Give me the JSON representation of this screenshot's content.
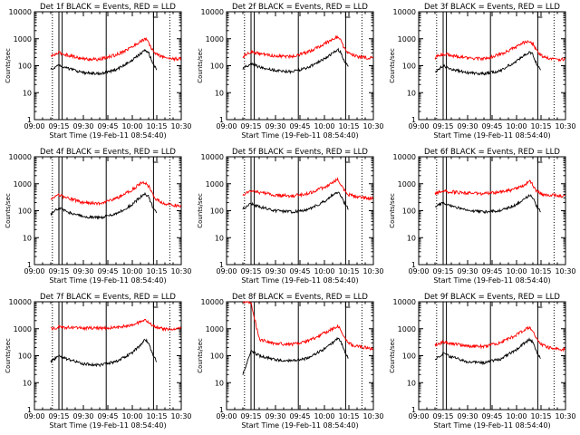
{
  "colors": {
    "events": "#000000",
    "lld": "#ff0000",
    "axes": "#000000"
  },
  "chart_data": [
    {
      "type": "line",
      "title": "Det 1f BLACK = Events, RED = LLD",
      "xlabel": "Start Time (19-Feb-11 08:54:40)",
      "ylabel": "Counts/sec",
      "ylim": [
        1,
        10000
      ],
      "yscale": "log",
      "xlim": [
        "09:00",
        "10:30"
      ],
      "xticks": [
        "09:00",
        "09:15",
        "09:30",
        "09:45",
        "10:00",
        "10:15",
        "10:30"
      ],
      "yticks": [
        "1",
        "10",
        "100",
        "1000",
        "10000"
      ],
      "x": [
        "09:10",
        "09:15",
        "09:20",
        "09:30",
        "09:40",
        "09:50",
        "10:00",
        "10:05",
        "10:08",
        "10:10",
        "10:12",
        "10:15",
        "10:20",
        "10:25",
        "10:30"
      ],
      "series": [
        {
          "values": [
            220,
            300,
            250,
            180,
            170,
            250,
            500,
            800,
            1000,
            700,
            400,
            260,
            200,
            180,
            180
          ]
        },
        {
          "values": [
            70,
            110,
            80,
            55,
            50,
            70,
            160,
            280,
            380,
            300,
            150,
            70,
            null,
            null,
            null
          ]
        }
      ]
    },
    {
      "type": "line",
      "title": "Det 2f BLACK = Events, RED = LLD",
      "xlabel": "Start Time (19-Feb-11 08:54:40)",
      "ylabel": "Counts/sec",
      "ylim": [
        1,
        10000
      ],
      "yscale": "log",
      "xlim": [
        "09:00",
        "10:30"
      ],
      "xticks": [
        "09:00",
        "09:15",
        "09:30",
        "09:45",
        "10:00",
        "10:15",
        "10:30"
      ],
      "yticks": [
        "1",
        "10",
        "100",
        "1000",
        "10000"
      ],
      "x": [
        "09:10",
        "09:15",
        "09:20",
        "09:30",
        "09:40",
        "09:50",
        "10:00",
        "10:05",
        "10:08",
        "10:10",
        "10:12",
        "10:15",
        "10:20",
        "10:25",
        "10:30"
      ],
      "series": [
        {
          "values": [
            220,
            330,
            280,
            230,
            220,
            320,
            650,
            950,
            1200,
            850,
            450,
            280,
            220,
            200,
            190
          ]
        },
        {
          "values": [
            80,
            120,
            90,
            65,
            60,
            85,
            180,
            300,
            400,
            320,
            160,
            80,
            null,
            null,
            null
          ]
        }
      ]
    },
    {
      "type": "line",
      "title": "Det 3f BLACK = Events, RED = LLD",
      "xlabel": "Start Time (19-Feb-11 08:54:40)",
      "ylabel": "Counts/sec",
      "ylim": [
        1,
        10000
      ],
      "yscale": "log",
      "xlim": [
        "09:00",
        "10:30"
      ],
      "xticks": [
        "09:00",
        "09:15",
        "09:30",
        "09:45",
        "10:00",
        "10:15",
        "10:30"
      ],
      "yticks": [
        "1",
        "10",
        "100",
        "1000",
        "10000"
      ],
      "x": [
        "09:10",
        "09:15",
        "09:20",
        "09:30",
        "09:40",
        "09:50",
        "10:00",
        "10:05",
        "10:08",
        "10:10",
        "10:12",
        "10:15",
        "10:20",
        "10:25",
        "10:30"
      ],
      "series": [
        {
          "values": [
            200,
            280,
            240,
            190,
            180,
            260,
            500,
            750,
            850,
            650,
            380,
            240,
            190,
            170,
            170
          ]
        },
        {
          "values": [
            60,
            100,
            75,
            55,
            50,
            65,
            150,
            250,
            330,
            260,
            130,
            60,
            null,
            null,
            null
          ]
        }
      ]
    },
    {
      "type": "line",
      "title": "Det 4f BLACK = Events, RED = LLD",
      "xlabel": "Start Time (19-Feb-11 08:54:40)",
      "ylabel": "Counts/sec",
      "ylim": [
        1,
        10000
      ],
      "yscale": "log",
      "xlim": [
        "09:00",
        "10:30"
      ],
      "xticks": [
        "09:00",
        "09:15",
        "09:30",
        "09:45",
        "10:00",
        "10:15",
        "10:30"
      ],
      "yticks": [
        "1",
        "10",
        "100",
        "1000",
        "10000"
      ],
      "x": [
        "09:10",
        "09:15",
        "09:20",
        "09:30",
        "09:40",
        "09:50",
        "10:00",
        "10:05",
        "10:08",
        "10:10",
        "10:12",
        "10:15",
        "10:20",
        "10:25",
        "10:30"
      ],
      "series": [
        {
          "values": [
            250,
            380,
            300,
            200,
            190,
            280,
            600,
            1000,
            1100,
            800,
            450,
            250,
            180,
            160,
            150
          ]
        },
        {
          "values": [
            75,
            130,
            90,
            60,
            55,
            75,
            170,
            320,
            420,
            330,
            160,
            75,
            null,
            null,
            null
          ]
        }
      ]
    },
    {
      "type": "line",
      "title": "Det 5f BLACK = Events, RED = LLD",
      "xlabel": "Start Time (19-Feb-11 08:54:40)",
      "ylabel": "Counts/sec",
      "ylim": [
        1,
        10000
      ],
      "yscale": "log",
      "xlim": [
        "09:00",
        "10:30"
      ],
      "xticks": [
        "09:00",
        "09:15",
        "09:30",
        "09:45",
        "10:00",
        "10:15",
        "10:30"
      ],
      "yticks": [
        "1",
        "10",
        "100",
        "1000",
        "10000"
      ],
      "x": [
        "09:10",
        "09:15",
        "09:20",
        "09:30",
        "09:40",
        "09:50",
        "10:00",
        "10:05",
        "10:08",
        "10:10",
        "10:12",
        "10:15",
        "10:20",
        "10:25",
        "10:30"
      ],
      "series": [
        {
          "values": [
            400,
            550,
            480,
            380,
            350,
            430,
            750,
            1100,
            1400,
            1000,
            600,
            400,
            320,
            300,
            280
          ]
        },
        {
          "values": [
            120,
            180,
            140,
            100,
            90,
            110,
            220,
            380,
            480,
            370,
            200,
            110,
            null,
            null,
            null
          ]
        }
      ]
    },
    {
      "type": "line",
      "title": "Det 6f BLACK = Events, RED = LLD",
      "xlabel": "Start Time (19-Feb-11 08:54:40)",
      "ylabel": "Counts/sec",
      "ylim": [
        1,
        10000
      ],
      "yscale": "log",
      "xlim": [
        "09:00",
        "10:30"
      ],
      "xticks": [
        "09:00",
        "09:15",
        "09:30",
        "09:45",
        "10:00",
        "10:15",
        "10:30"
      ],
      "yticks": [
        "1",
        "10",
        "100",
        "1000",
        "10000"
      ],
      "x": [
        "09:10",
        "09:15",
        "09:20",
        "09:30",
        "09:40",
        "09:50",
        "10:00",
        "10:05",
        "10:08",
        "10:10",
        "10:12",
        "10:15",
        "10:20",
        "10:25",
        "10:30"
      ],
      "series": [
        {
          "values": [
            450,
            520,
            500,
            450,
            430,
            480,
            650,
            900,
            1200,
            900,
            550,
            420,
            380,
            360,
            350
          ]
        },
        {
          "values": [
            140,
            200,
            150,
            100,
            90,
            100,
            170,
            280,
            380,
            300,
            150,
            90,
            null,
            null,
            null
          ]
        }
      ]
    },
    {
      "type": "line",
      "title": "Det 7f BLACK = Events, RED = LLD",
      "xlabel": "Start Time (19-Feb-11 08:54:40)",
      "ylabel": "Counts/sec",
      "ylim": [
        1,
        10000
      ],
      "yscale": "log",
      "xlim": [
        "09:00",
        "10:30"
      ],
      "xticks": [
        "09:00",
        "09:15",
        "09:30",
        "09:45",
        "10:00",
        "10:15",
        "10:30"
      ],
      "yticks": [
        "1",
        "10",
        "100",
        "1000",
        "10000"
      ],
      "x": [
        "09:10",
        "09:15",
        "09:20",
        "09:30",
        "09:40",
        "09:50",
        "10:00",
        "10:05",
        "10:08",
        "10:10",
        "10:12",
        "10:15",
        "10:20",
        "10:25",
        "10:30"
      ],
      "series": [
        {
          "values": [
            1000,
            1150,
            1100,
            1050,
            1050,
            1100,
            1400,
            1800,
            2000,
            1700,
            1300,
            1100,
            1000,
            1000,
            1000
          ]
        },
        {
          "values": [
            60,
            100,
            75,
            50,
            45,
            60,
            130,
            250,
            400,
            300,
            130,
            60,
            null,
            null,
            null
          ]
        }
      ]
    },
    {
      "type": "line",
      "title": "Det 8f BLACK = Events, RED = LLD",
      "xlabel": "Start Time (19-Feb-11 08:54:40)",
      "ylabel": "Counts/sec",
      "ylim": [
        1,
        10000
      ],
      "yscale": "log",
      "xlim": [
        "09:00",
        "10:30"
      ],
      "xticks": [
        "09:00",
        "09:15",
        "09:30",
        "09:45",
        "10:00",
        "10:15",
        "10:30"
      ],
      "yticks": [
        "1",
        "10",
        "100",
        "1000",
        "10000"
      ],
      "x": [
        "09:10",
        "09:15",
        "09:20",
        "09:30",
        "09:40",
        "09:50",
        "10:00",
        "10:05",
        "10:08",
        "10:10",
        "10:12",
        "10:15",
        "10:20",
        "10:25",
        "10:30"
      ],
      "series": [
        {
          "values": [
            10000,
            10000,
            400,
            280,
            260,
            350,
            700,
            1000,
            1300,
            900,
            500,
            280,
            220,
            200,
            180
          ]
        },
        {
          "values": [
            20,
            150,
            100,
            70,
            65,
            80,
            180,
            300,
            450,
            350,
            160,
            70,
            null,
            null,
            null
          ]
        }
      ]
    },
    {
      "type": "line",
      "title": "Det 9f BLACK = Events, RED = LLD",
      "xlabel": "Start Time (19-Feb-11 08:54:40)",
      "ylabel": "Counts/sec",
      "ylim": [
        1,
        10000
      ],
      "yscale": "log",
      "xlim": [
        "09:00",
        "10:30"
      ],
      "xticks": [
        "09:00",
        "09:15",
        "09:30",
        "09:45",
        "10:00",
        "10:15",
        "10:30"
      ],
      "yticks": [
        "1",
        "10",
        "100",
        "1000",
        "10000"
      ],
      "x": [
        "09:10",
        "09:15",
        "09:20",
        "09:30",
        "09:40",
        "09:50",
        "10:00",
        "10:05",
        "10:08",
        "10:10",
        "10:12",
        "10:15",
        "10:20",
        "10:25",
        "10:30"
      ],
      "series": [
        {
          "values": [
            250,
            320,
            280,
            230,
            220,
            300,
            600,
            900,
            1100,
            800,
            450,
            260,
            200,
            180,
            170
          ]
        },
        {
          "values": [
            70,
            120,
            90,
            60,
            55,
            75,
            170,
            300,
            400,
            310,
            150,
            70,
            null,
            null,
            null
          ]
        }
      ]
    }
  ]
}
